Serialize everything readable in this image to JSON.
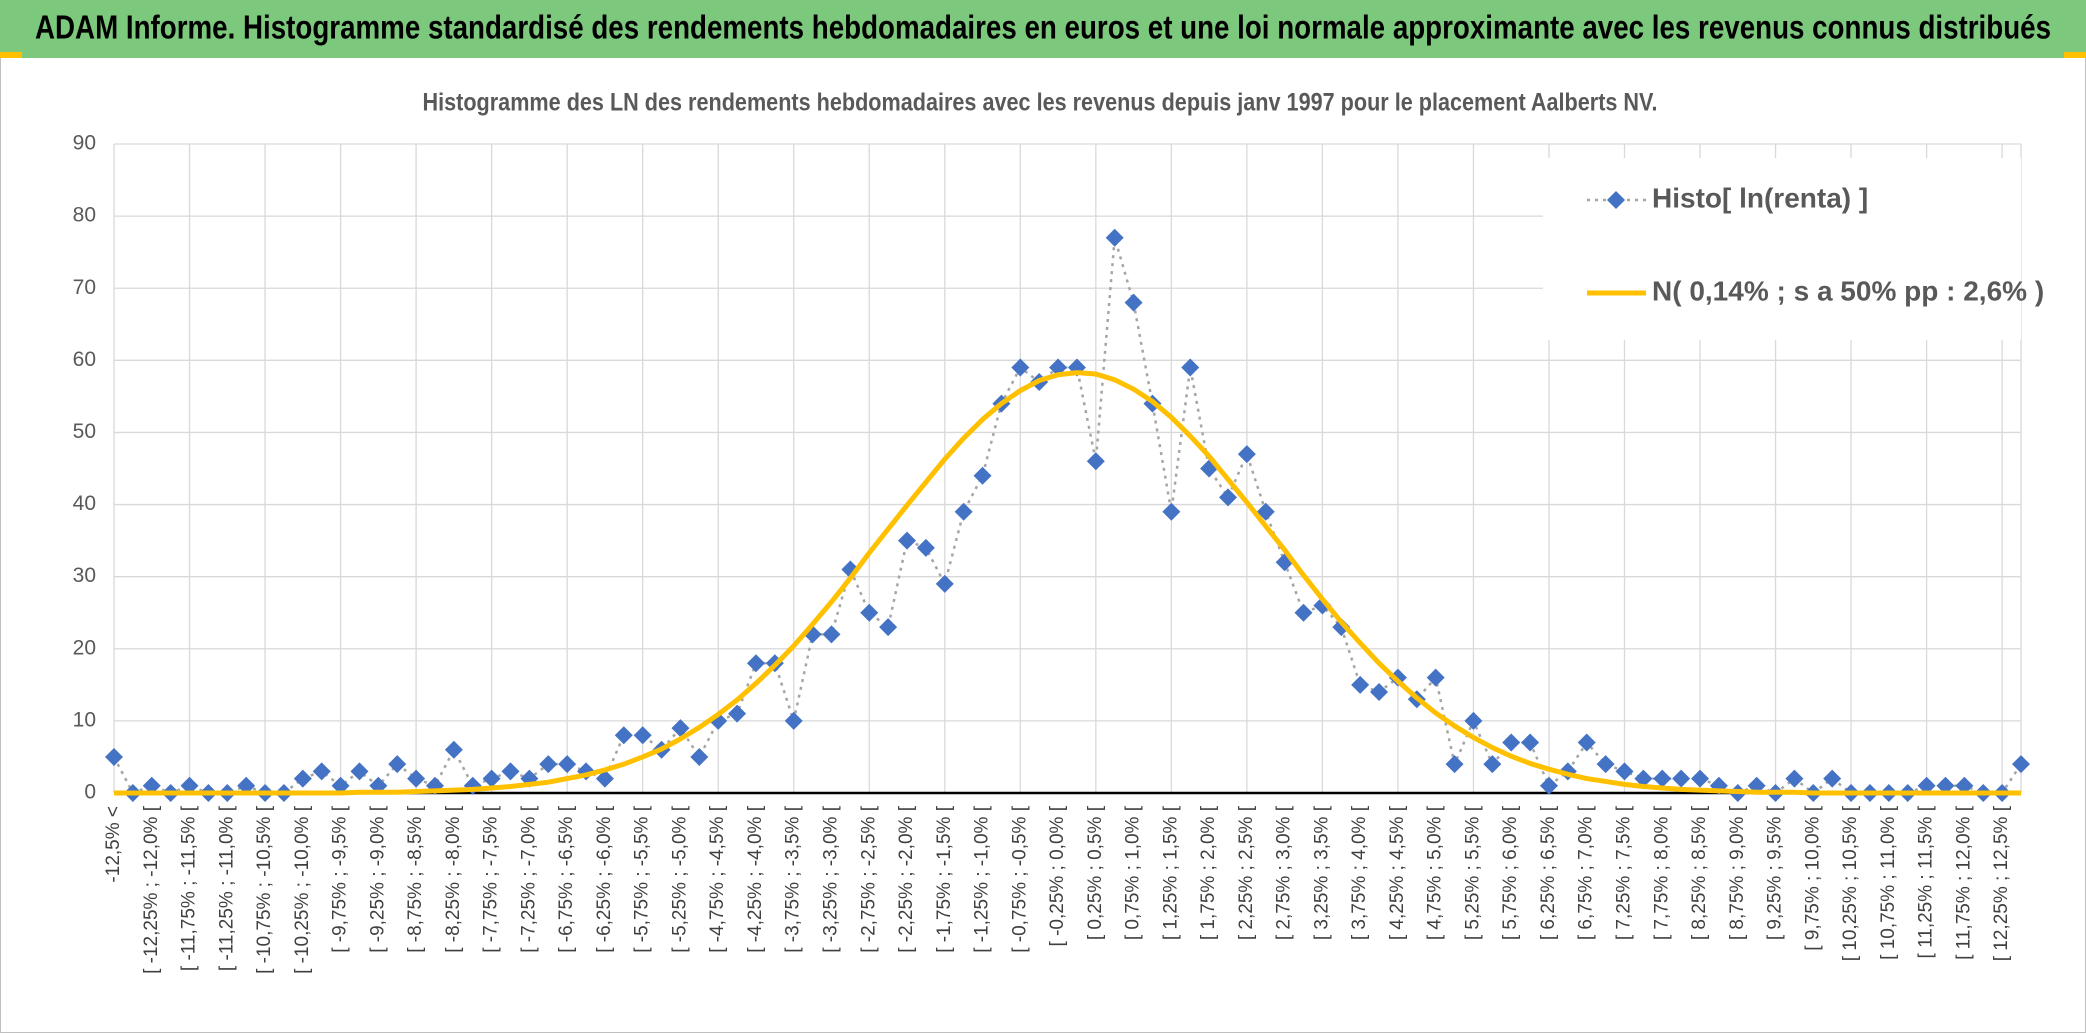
{
  "chart_data": {
    "type": "line",
    "title": "ADAM Informe. Histogramme standardisé des rendements hebdomadaires en euros et une loi normale approximante avec les revenus connus distribués",
    "subtitle": "Histogramme des LN des rendements hebdomadaires avec les revenus depuis janv 1997 pour le placement Aalberts NV.",
    "categories": [
      "-12,5% <",
      null,
      "[ -12,25% ; -12,0% [",
      null,
      "[ -11,75% ; -11,5% [",
      null,
      "[ -11,25% ; -11,0% [",
      null,
      "[ -10,75% ; -10,5% [",
      null,
      "[ -10,25% ; -10,0% [",
      null,
      "[ -9,75% ; -9,5% [",
      null,
      "[ -9,25% ; -9,0% [",
      null,
      "[ -8,75% ; -8,5% [",
      null,
      "[ -8,25% ; -8,0% [",
      null,
      "[ -7,75% ; -7,5% [",
      null,
      "[ -7,25% ; -7,0% [",
      null,
      "[ -6,75% ; -6,5% [",
      null,
      "[ -6,25% ; -6,0% [",
      null,
      "[ -5,75% ; -5,5% [",
      null,
      "[ -5,25% ; -5,0% [",
      null,
      "[ -4,75% ; -4,5% [",
      null,
      "[ -4,25% ; -4,0% [",
      null,
      "[ -3,75% ; -3,5% [",
      null,
      "[ -3,25% ; -3,0% [",
      null,
      "[ -2,75% ; -2,5% [",
      null,
      "[ -2,25% ; -2,0% [",
      null,
      "[ -1,75% ; -1,5% [",
      null,
      "[ -1,25% ; -1,0% [",
      null,
      "[ -0,75% ; -0,5% [",
      null,
      "[ -0,25% ; 0,0% [",
      null,
      "[ 0,25% ; 0,5% [",
      null,
      "[ 0,75% ; 1,0% [",
      null,
      "[ 1,25% ; 1,5% [",
      null,
      "[ 1,75% ; 2,0% [",
      null,
      "[ 2,25% ; 2,5% [",
      null,
      "[ 2,75% ; 3,0% [",
      null,
      "[ 3,25% ; 3,5% [",
      null,
      "[ 3,75% ; 4,0% [",
      null,
      "[ 4,25% ; 4,5% [",
      null,
      "[ 4,75% ; 5,0% [",
      null,
      "[ 5,25% ; 5,5% [",
      null,
      "[ 5,75% ; 6,0% [",
      null,
      "[ 6,25% ; 6,5% [",
      null,
      "[ 6,75% ; 7,0% [",
      null,
      "[ 7,25% ; 7,5% [",
      null,
      "[ 7,75% ; 8,0% [",
      null,
      "[ 8,25% ; 8,5% [",
      null,
      "[ 8,75% ; 9,0% [",
      null,
      "[ 9,25% ; 9,5% [",
      null,
      "[ 9,75% ; 10,0% [",
      null,
      "[ 10,25% ; 10,5% [",
      null,
      "[ 10,75% ; 11,0% [",
      null,
      "[ 11,25% ; 11,5% [",
      null,
      "[ 11,75% ; 12,0% [",
      null,
      "[ 12,25% ; 12,5% [",
      null
    ],
    "series": [
      {
        "name": "Histo[ ln(renta) ]",
        "color": "#4472c4",
        "line_color": "#a5a5a5",
        "line_style": "dotted",
        "marker": "diamond",
        "values": [
          5,
          0,
          1,
          0,
          1,
          0,
          0,
          1,
          0,
          0,
          2,
          3,
          1,
          3,
          1,
          4,
          2,
          1,
          6,
          1,
          2,
          3,
          2,
          4,
          4,
          3,
          2,
          8,
          8,
          6,
          9,
          5,
          10,
          11,
          18,
          18,
          10,
          22,
          22,
          31,
          25,
          23,
          35,
          34,
          29,
          39,
          44,
          54,
          59,
          57,
          59,
          59,
          46,
          77,
          68,
          54,
          39,
          59,
          45,
          41,
          47,
          39,
          32,
          25,
          26,
          23,
          15,
          14,
          16,
          13,
          16,
          4,
          10,
          4,
          7,
          7,
          1,
          3,
          7,
          4,
          3,
          2,
          2,
          2,
          2,
          1,
          0,
          1,
          0,
          2,
          0,
          2,
          0,
          0,
          0,
          0,
          1,
          1,
          1,
          0,
          0,
          4
        ]
      },
      {
        "name": "N( 0,14% ; s a 50% pp : 2,6% )",
        "color": "#ffc000",
        "line_color": "#ffc000",
        "line_style": "solid",
        "values": [
          0,
          0,
          0,
          0,
          0,
          0,
          0,
          0,
          0,
          0,
          0,
          0,
          0,
          0.1,
          0.1,
          0.1,
          0.2,
          0.3,
          0.4,
          0.5,
          0.7,
          0.9,
          1.2,
          1.5,
          2.0,
          2.5,
          3.2,
          4.0,
          5.0,
          6.1,
          7.5,
          9.1,
          10.9,
          12.9,
          15.2,
          17.7,
          20.4,
          23.4,
          26.5,
          29.8,
          33.3,
          36.6,
          39.9,
          43.1,
          46.3,
          49.2,
          51.8,
          54.0,
          55.8,
          57.2,
          58.0,
          58.3,
          58.1,
          57.3,
          56.0,
          54.3,
          52.1,
          49.5,
          46.7,
          43.5,
          40.3,
          37.0,
          33.7,
          30.2,
          26.9,
          23.7,
          20.8,
          18.0,
          15.5,
          13.2,
          11.1,
          9.3,
          7.7,
          6.3,
          5.1,
          4.1,
          3.3,
          2.6,
          2.0,
          1.6,
          1.2,
          0.9,
          0.7,
          0.5,
          0.4,
          0.3,
          0.2,
          0.1,
          0.1,
          0.1,
          0,
          0,
          0,
          0,
          0,
          0,
          0,
          0,
          0,
          0,
          0,
          0
        ]
      }
    ],
    "ylim": [
      0,
      90
    ],
    "yticks": [
      0,
      10,
      20,
      30,
      40,
      50,
      60,
      70,
      80,
      90
    ],
    "grid": true,
    "legend": "upper right"
  }
}
